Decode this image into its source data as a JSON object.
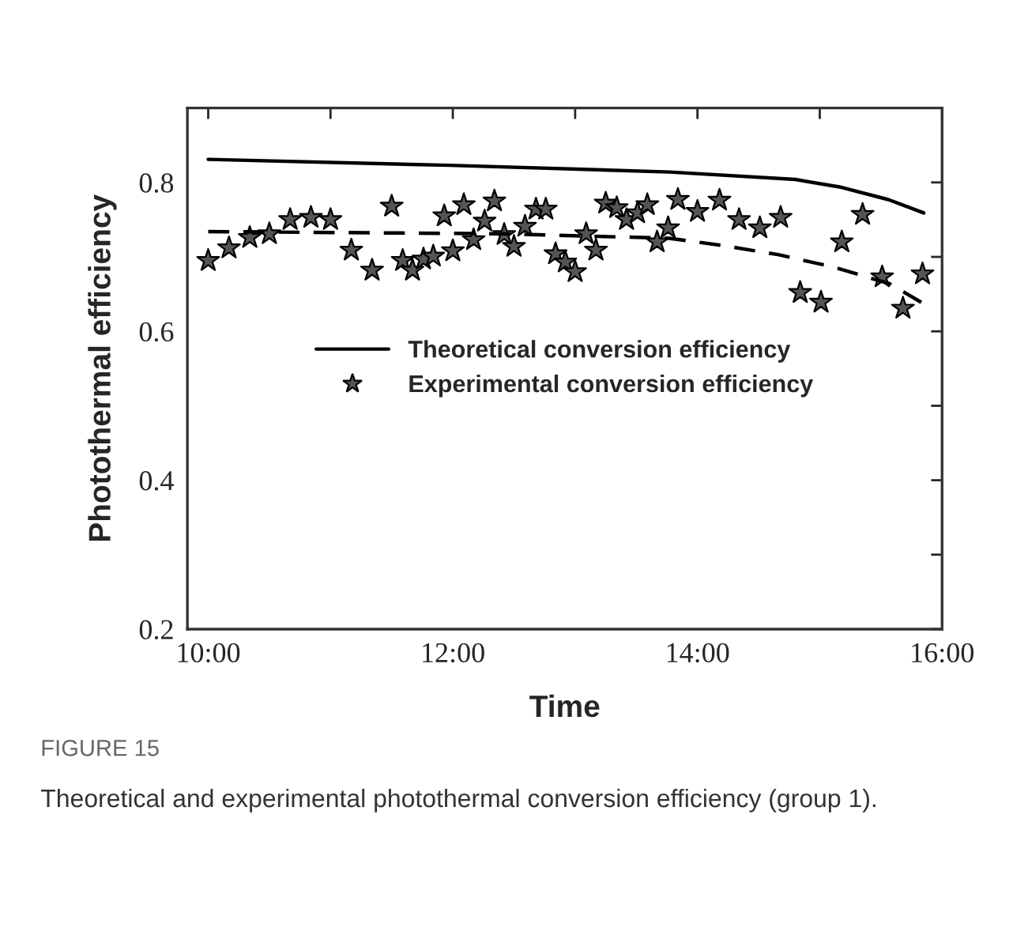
{
  "chart_data": {
    "type": "line",
    "xlabel": "Time",
    "ylabel": "Photothermal efficiency",
    "xlim": [
      9.83,
      16
    ],
    "ylim": [
      0.2,
      0.9
    ],
    "xticks": [
      {
        "value": 10,
        "label": "10:00"
      },
      {
        "value": 11,
        "label": null
      },
      {
        "value": 12,
        "label": "12:00"
      },
      {
        "value": 13,
        "label": null
      },
      {
        "value": 14,
        "label": "14:00"
      },
      {
        "value": 15,
        "label": null
      },
      {
        "value": 16,
        "label": "16:00"
      }
    ],
    "yticks": [
      0.2,
      {
        "value": 0.3,
        "label": null
      },
      0.4,
      {
        "value": 0.5,
        "label": null
      },
      0.6,
      {
        "value": 0.7,
        "label": null
      },
      0.8
    ],
    "grid": false,
    "legend": "center",
    "series": [
      {
        "name": "Theoretical conversion efficiency",
        "color": "#000000",
        "line_style": "solid",
        "marker": "none",
        "x": [
          10,
          11.97,
          13.77,
          14.8,
          15.16,
          15.56,
          15.85
        ],
        "values": [
          0.831,
          0.823,
          0.814,
          0.804,
          0.794,
          0.777,
          0.759
        ]
      },
      {
        "name": "Experimental conversion efficiency",
        "type": "scatter",
        "color": "#555555",
        "marker": "star",
        "x": [
          10.0,
          10.17,
          10.34,
          10.5,
          10.67,
          10.84,
          11.0,
          11.17,
          11.34,
          11.5,
          11.59,
          11.67,
          11.76,
          11.84,
          11.93,
          12.0,
          12.09,
          12.17,
          12.26,
          12.34,
          12.42,
          12.5,
          12.59,
          12.68,
          12.76,
          12.84,
          12.92,
          13.0,
          13.09,
          13.17,
          13.25,
          13.34,
          13.42,
          13.51,
          13.59,
          13.67,
          13.76,
          13.84,
          14.0,
          14.18,
          14.34,
          14.51,
          14.68,
          14.84,
          15.01,
          15.18,
          15.35,
          15.51,
          15.68,
          15.84
        ],
        "values": [
          0.695,
          0.712,
          0.726,
          0.731,
          0.75,
          0.753,
          0.75,
          0.709,
          0.682,
          0.768,
          0.695,
          0.682,
          0.697,
          0.701,
          0.755,
          0.708,
          0.77,
          0.723,
          0.748,
          0.775,
          0.73,
          0.714,
          0.741,
          0.764,
          0.764,
          0.704,
          0.693,
          0.68,
          0.731,
          0.709,
          0.772,
          0.766,
          0.75,
          0.759,
          0.77,
          0.72,
          0.739,
          0.777,
          0.761,
          0.776,
          0.75,
          0.739,
          0.753,
          0.652,
          0.639,
          0.72,
          0.757,
          0.673,
          0.631,
          0.677
        ]
      },
      {
        "color": "#000000",
        "line_style": "dashed",
        "marker": "none",
        "x": [
          10,
          12.42,
          13.77,
          14.22,
          14.66,
          15.12,
          15.57,
          15.83
        ],
        "values": [
          0.734,
          0.731,
          0.725,
          0.715,
          0.703,
          0.686,
          0.664,
          0.639
        ]
      }
    ],
    "annotations": [
      "FIGURE 15",
      "Theoretical and experimental photothermal conversion efficiency (group 1)."
    ]
  }
}
